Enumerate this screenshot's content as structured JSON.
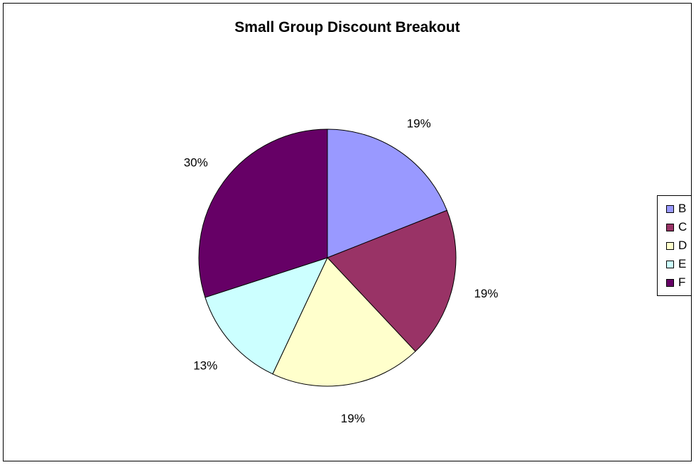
{
  "chart_data": {
    "type": "pie",
    "title": "Small Group Discount Breakout",
    "categories": [
      "B",
      "C",
      "D",
      "E",
      "F"
    ],
    "values": [
      19,
      19,
      19,
      13,
      30
    ],
    "labels": [
      "19%",
      "19%",
      "19%",
      "13%",
      "30%"
    ],
    "colors": [
      "#9999ff",
      "#993366",
      "#ffffcc",
      "#ccffff",
      "#660066"
    ],
    "start_angle": "12 o'clock",
    "direction": "clockwise",
    "legend_position": "right"
  }
}
